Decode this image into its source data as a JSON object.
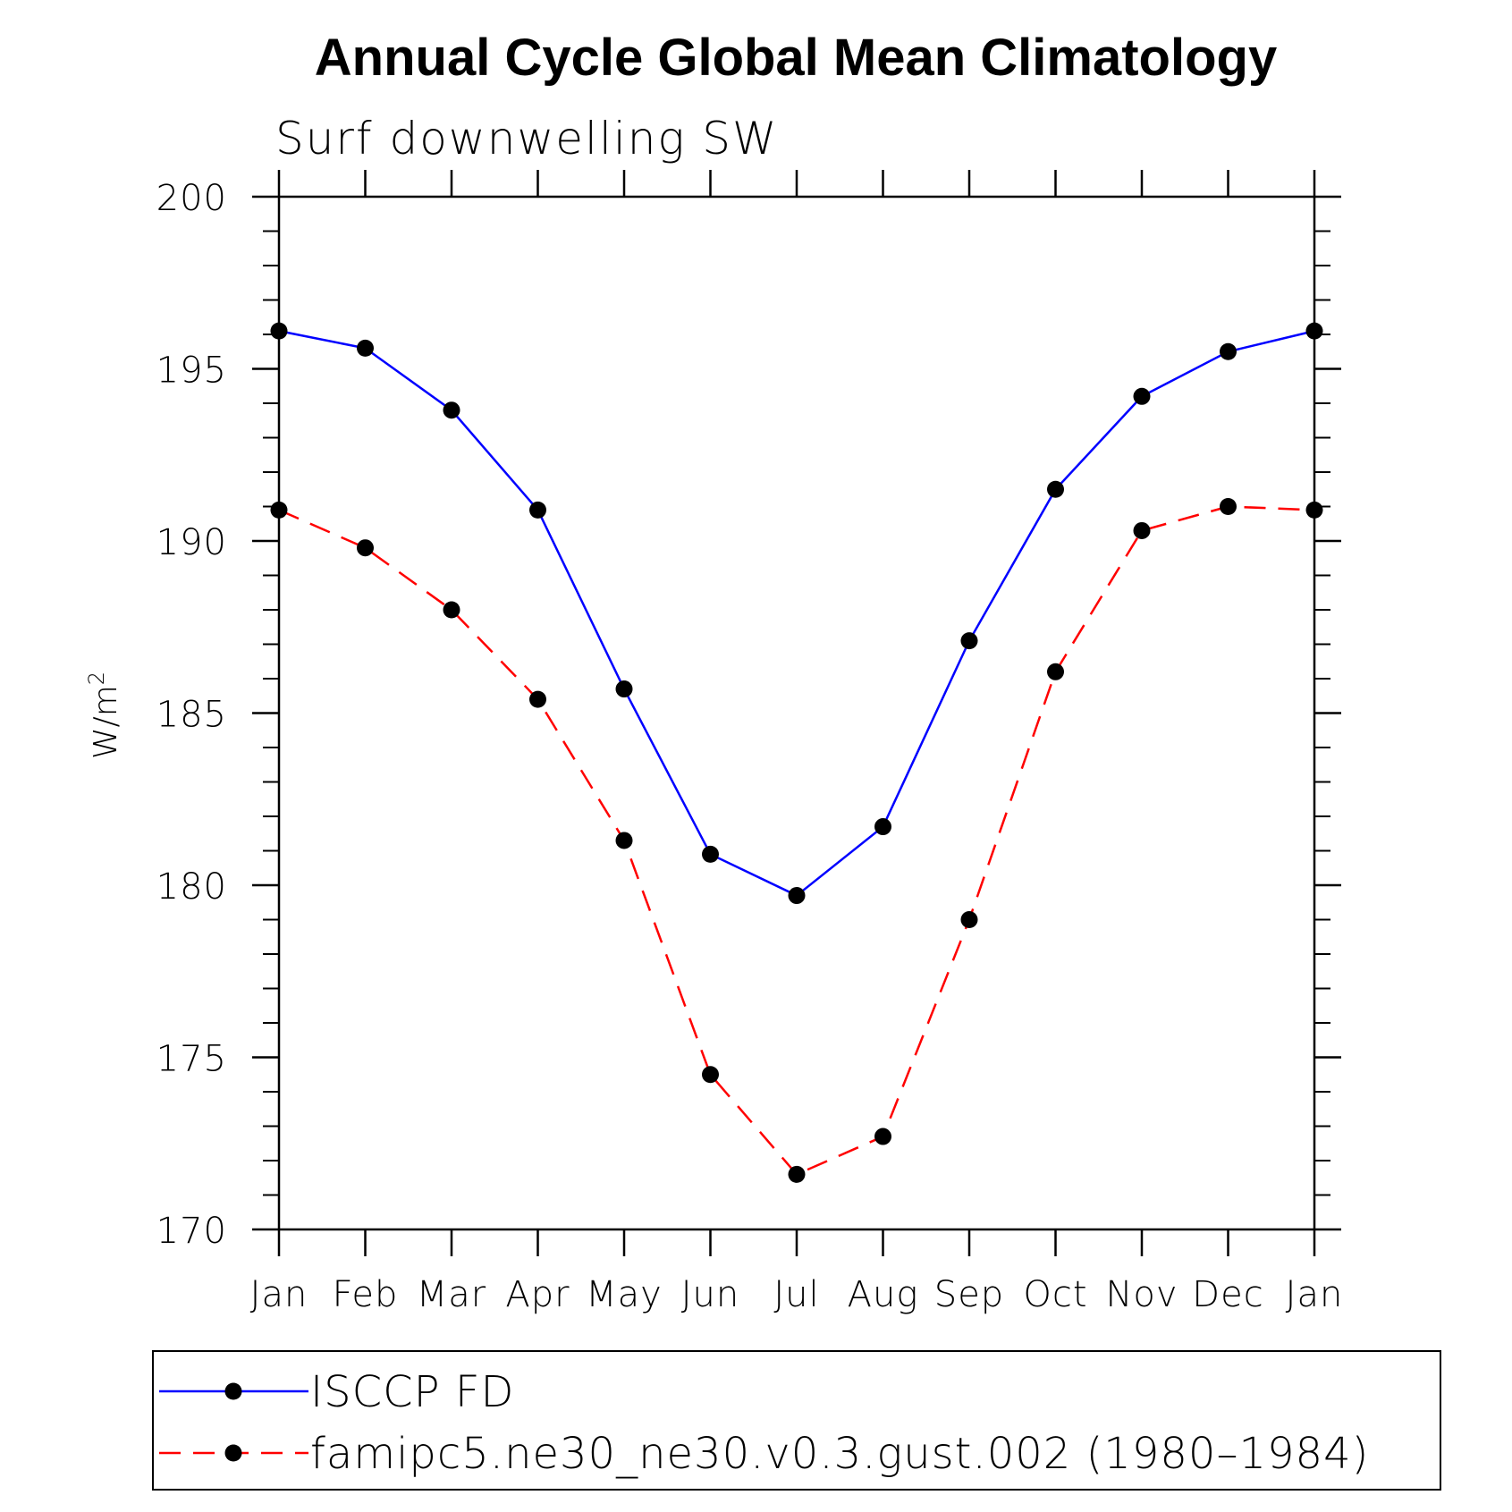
{
  "chart_data": {
    "type": "line",
    "title": "Annual Cycle Global Mean Climatology",
    "subtitle": "Surf downwelling SW",
    "xlabel": "",
    "ylabel": "W/m",
    "ylabel_superscript": "2",
    "categories": [
      "Jan",
      "Feb",
      "Mar",
      "Apr",
      "May",
      "Jun",
      "Jul",
      "Aug",
      "Sep",
      "Oct",
      "Nov",
      "Dec",
      "Jan"
    ],
    "ylim": [
      170,
      200
    ],
    "y_ticks": [
      170,
      175,
      180,
      185,
      190,
      195,
      200
    ],
    "y_minor_step": 1,
    "legend_position": "bottom",
    "series": [
      {
        "name": "ISCCP FD",
        "color": "#0000ff",
        "dash": "solid",
        "values": [
          196.1,
          195.6,
          193.8,
          190.9,
          185.7,
          180.9,
          179.7,
          181.7,
          187.1,
          191.5,
          194.2,
          195.5,
          196.1
        ]
      },
      {
        "name": "famipc5.ne30_ne30.v0.3.gust.002 (1980–1984)",
        "color": "#ff0000",
        "dash": "dashed",
        "values": [
          190.9,
          189.8,
          188.0,
          185.4,
          181.3,
          174.5,
          171.6,
          172.7,
          179.0,
          186.2,
          190.3,
          191.0,
          190.9
        ]
      }
    ]
  }
}
